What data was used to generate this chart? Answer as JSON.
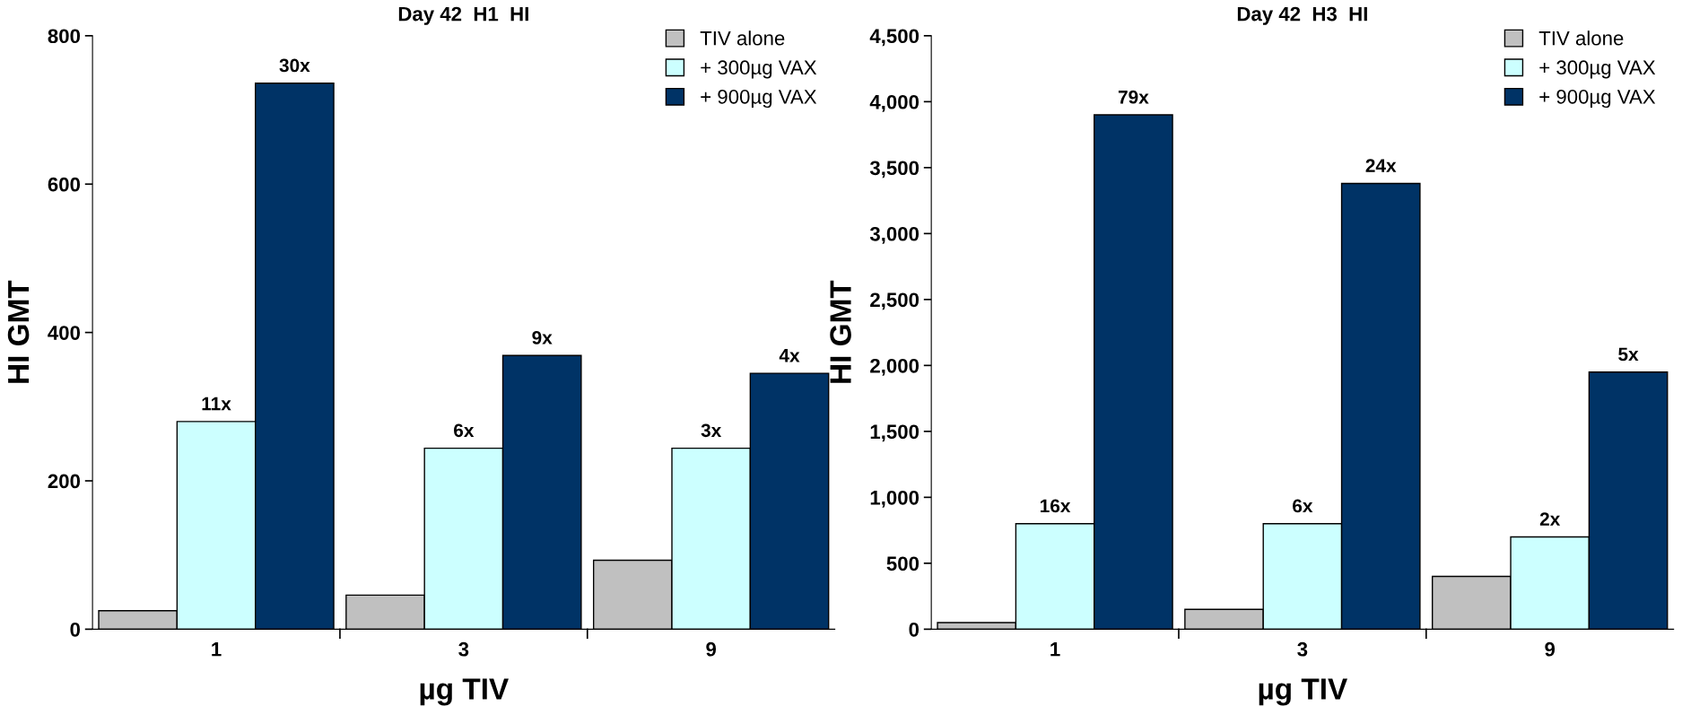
{
  "chart_data": [
    {
      "type": "bar",
      "title": "Day 42  H1  HI",
      "xlabel": "µg TIV",
      "ylabel": "HI GMT",
      "categories": [
        "1",
        "3",
        "9"
      ],
      "series": [
        {
          "name": "TIV alone",
          "color": "#c0c0c0",
          "values": [
            25,
            46,
            93
          ]
        },
        {
          "name": "+ 300µg VAX",
          "color": "#ccffff",
          "values": [
            280,
            244,
            244
          ]
        },
        {
          "name": "+ 900µg VAX",
          "color": "#003366",
          "values": [
            736,
            369,
            345
          ]
        }
      ],
      "annotations": [
        "11x",
        "6x",
        "3x",
        "30x",
        "9x",
        "4x"
      ],
      "ylim": [
        0,
        800
      ],
      "yticks": [
        0,
        200,
        400,
        600,
        800
      ],
      "grid": false,
      "legend": "top right"
    },
    {
      "type": "bar",
      "title": "Day 42  H3  HI",
      "xlabel": "µg TIV",
      "ylabel": "HI GMT",
      "categories": [
        "1",
        "3",
        "9"
      ],
      "series": [
        {
          "name": "TIV alone",
          "color": "#c0c0c0",
          "values": [
            50,
            150,
            400
          ]
        },
        {
          "name": "+ 300µg VAX",
          "color": "#ccffff",
          "values": [
            800,
            800,
            700
          ]
        },
        {
          "name": "+ 900µg VAX",
          "color": "#003366",
          "values": [
            3900,
            3380,
            1950
          ]
        }
      ],
      "annotations": [
        "16x",
        "6x",
        "2x",
        "79x",
        "24x",
        "5x"
      ],
      "ylim": [
        0,
        4500
      ],
      "yticks": [
        {
          "value": 0,
          "label": "0"
        },
        {
          "value": 500,
          "label": "500"
        },
        {
          "value": 1000,
          "label": "1,000"
        },
        {
          "value": 1500,
          "label": "1,500"
        },
        {
          "value": 2000,
          "label": "2,000"
        },
        {
          "value": 2500,
          "label": "2,500"
        },
        {
          "value": 3000,
          "label": "3,000"
        },
        {
          "value": 3500,
          "label": "3,500"
        },
        {
          "value": 4000,
          "label": "4,000"
        },
        {
          "value": 4500,
          "label": "4,500"
        }
      ],
      "grid": false,
      "legend": "top right"
    }
  ]
}
